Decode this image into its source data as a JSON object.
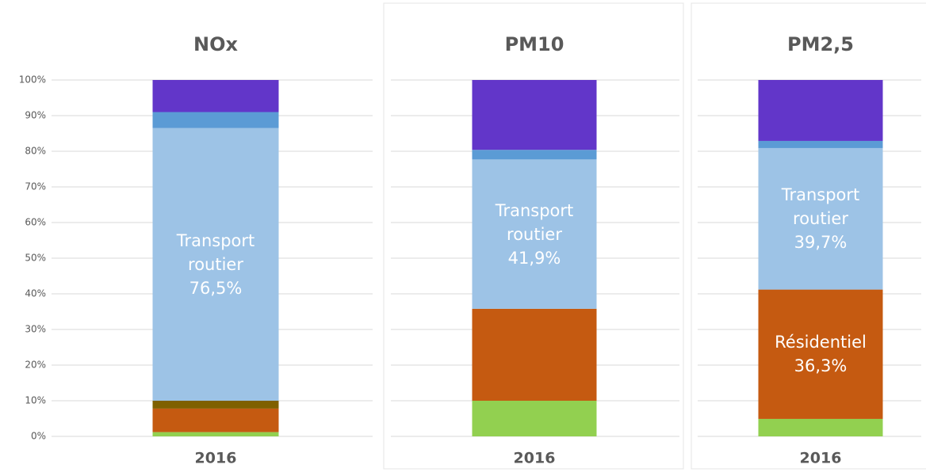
{
  "chart_data": [
    {
      "type": "bar",
      "stacked": true,
      "title": "NOx",
      "categories": [
        "2016"
      ],
      "series": [
        {
          "color": "#92d050",
          "values": [
            1.2
          ]
        },
        {
          "color": "#c55a11",
          "values": [
            6.6
          ]
        },
        {
          "color": "#7f6000",
          "values": [
            2.2
          ]
        },
        {
          "name": "Transport routier",
          "color": "#9dc3e6",
          "values": [
            76.5
          ],
          "value_labels": [
            "76,5%"
          ]
        },
        {
          "color": "#5b9bd5",
          "values": [
            4.5
          ]
        },
        {
          "color": "#6236c9",
          "values": [
            9.0
          ]
        }
      ],
      "ylim": [
        0,
        100
      ],
      "yticks": [
        {
          "value": 0,
          "label": "0%"
        },
        {
          "value": 10,
          "label": "10%"
        },
        {
          "value": 20,
          "label": "20%"
        },
        {
          "value": 30,
          "label": "30%"
        },
        {
          "value": 40,
          "label": "40%"
        },
        {
          "value": 50,
          "label": "50%"
        },
        {
          "value": 60,
          "label": "60%"
        },
        {
          "value": 70,
          "label": "70%"
        },
        {
          "value": 80,
          "label": "80%"
        },
        {
          "value": 90,
          "label": "90%"
        },
        {
          "value": 100,
          "label": "100%"
        }
      ],
      "tick_labels": true,
      "grid": true
    },
    {
      "type": "bar",
      "stacked": true,
      "title": "PM10",
      "categories": [
        "2016"
      ],
      "series": [
        {
          "color": "#92d050",
          "values": [
            10.0
          ]
        },
        {
          "color": "#c55a11",
          "values": [
            25.8
          ]
        },
        {
          "name": "Transport routier",
          "color": "#9dc3e6",
          "values": [
            41.9
          ],
          "value_labels": [
            "41,9%"
          ]
        },
        {
          "color": "#5b9bd5",
          "values": [
            2.7
          ]
        },
        {
          "color": "#6236c9",
          "values": [
            19.6
          ]
        }
      ],
      "ylim": [
        0,
        100
      ],
      "yticks": [
        0,
        10,
        20,
        30,
        40,
        50,
        60,
        70,
        80,
        90,
        100
      ],
      "tick_labels": false,
      "grid": true
    },
    {
      "type": "bar",
      "stacked": true,
      "title": "PM2,5",
      "categories": [
        "2016"
      ],
      "series": [
        {
          "color": "#92d050",
          "values": [
            4.9
          ]
        },
        {
          "name": "Résidentiel",
          "color": "#c55a11",
          "values": [
            36.3
          ],
          "value_labels": [
            "36,3%"
          ]
        },
        {
          "name": "Transport routier",
          "color": "#9dc3e6",
          "values": [
            39.7
          ],
          "value_labels": [
            "39,7%"
          ]
        },
        {
          "color": "#5b9bd5",
          "values": [
            2.0
          ]
        },
        {
          "color": "#6236c9",
          "values": [
            17.1
          ]
        }
      ],
      "ylim": [
        0,
        100
      ],
      "yticks": [
        0,
        10,
        20,
        30,
        40,
        50,
        60,
        70,
        80,
        90,
        100
      ],
      "tick_labels": false,
      "grid": true
    }
  ]
}
